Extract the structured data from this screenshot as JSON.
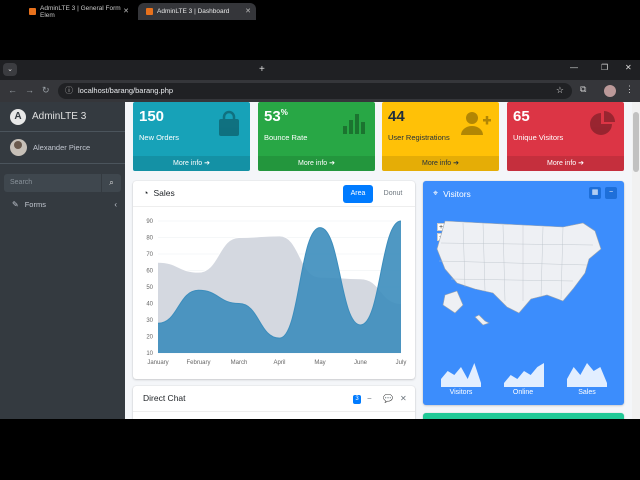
{
  "browser": {
    "tabs": [
      {
        "title": "AdminLTE 3 | General Form Elem",
        "active": false
      },
      {
        "title": "AdminLTE 3 | Dashboard",
        "active": true
      }
    ],
    "url": "localhost/barang/barang.php"
  },
  "sidebar": {
    "brand": "AdminLTE 3",
    "user_name": "Alexander Pierce",
    "search_placeholder": "Search",
    "nav": [
      {
        "label": "Forms",
        "icon": "edit-icon"
      }
    ]
  },
  "stats": [
    {
      "value": "150",
      "suffix": "",
      "label": "New Orders",
      "link": "More info",
      "color": "#17a2b8",
      "icon": "shopping-bag-icon"
    },
    {
      "value": "53",
      "suffix": "%",
      "label": "Bounce Rate",
      "link": "More info",
      "color": "#28a745",
      "icon": "bar-chart-icon"
    },
    {
      "value": "44",
      "suffix": "",
      "label": "User Registrations",
      "link": "More info",
      "color": "#ffc107",
      "icon": "user-plus-icon"
    },
    {
      "value": "65",
      "suffix": "",
      "label": "Unique Visitors",
      "link": "More info",
      "color": "#dc3545",
      "icon": "pie-chart-icon"
    }
  ],
  "sales_card": {
    "title": "Sales",
    "tabs": [
      "Area",
      "Donut"
    ],
    "active_tab": "Area"
  },
  "chart_data": {
    "type": "area",
    "categories": [
      "January",
      "February",
      "March",
      "April",
      "May",
      "June",
      "July"
    ],
    "y_ticks": [
      10,
      20,
      30,
      40,
      50,
      60,
      70,
      80,
      90
    ],
    "ylim": [
      10,
      90
    ],
    "series": [
      {
        "values": [
          65,
          59,
          80,
          81,
          56,
          55,
          40
        ],
        "color": "#d2d6de"
      },
      {
        "values": [
          28,
          48,
          40,
          19,
          86,
          27,
          90
        ],
        "color": "#3c8dbc"
      }
    ],
    "grid": true
  },
  "visitors_card": {
    "title": "Visitors",
    "sparklines": [
      {
        "label": "Visitors",
        "values": [
          2,
          4,
          3,
          5,
          2,
          6,
          1
        ]
      },
      {
        "label": "Online",
        "values": [
          1,
          3,
          2,
          4,
          3,
          5,
          6
        ]
      },
      {
        "label": "Sales",
        "values": [
          2,
          5,
          3,
          6,
          4,
          5,
          1
        ]
      }
    ]
  },
  "chat_card": {
    "title": "Direct Chat",
    "badge": "3"
  }
}
